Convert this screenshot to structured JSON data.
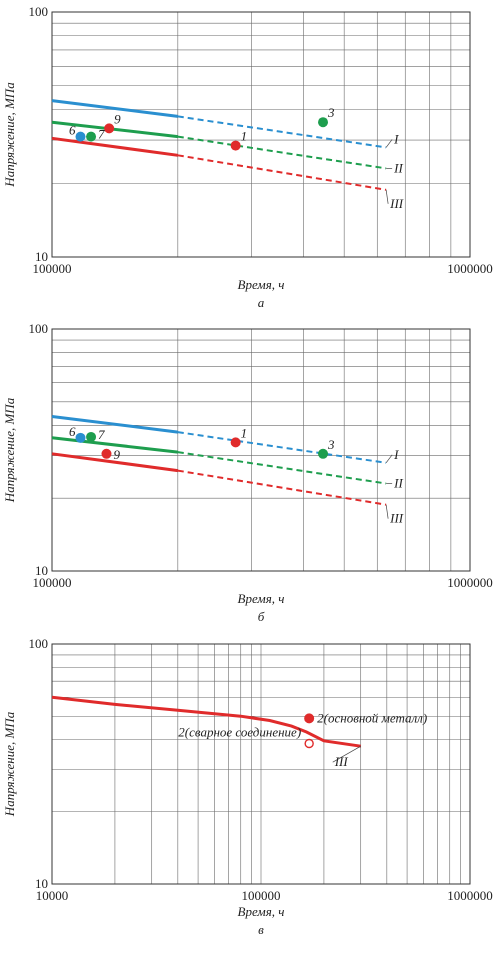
{
  "chart_data": [
    {
      "panel_label": "а",
      "type": "line",
      "x_scale": "log",
      "y_scale": "log",
      "xlim": [
        100000,
        1000000
      ],
      "ylim": [
        10,
        100
      ],
      "xlabel": "Время, ч",
      "ylabel": "Напряжение, МПа",
      "x_tick_labels": [
        "100000",
        "1000000"
      ],
      "y_tick_labels": [
        "10",
        "100"
      ],
      "grid": true,
      "series": [
        {
          "name": "I",
          "color": "#2a8fd0",
          "solid": [
            [
              100000,
              43.5
            ],
            [
              200000,
              37.5
            ]
          ],
          "dashed": [
            [
              200000,
              37.5
            ],
            [
              630000,
              28.0
            ]
          ]
        },
        {
          "name": "II",
          "color": "#1e9e4e",
          "solid": [
            [
              100000,
              35.5
            ],
            [
              200000,
              31.0
            ]
          ],
          "dashed": [
            [
              200000,
              31.0
            ],
            [
              630000,
              23.0
            ]
          ]
        },
        {
          "name": "III",
          "color": "#e02b2b",
          "solid": [
            [
              100000,
              30.5
            ],
            [
              200000,
              26.0
            ]
          ],
          "dashed": [
            [
              200000,
              26.0
            ],
            [
              630000,
              18.8
            ]
          ]
        }
      ],
      "points": [
        {
          "label": "9",
          "x": 137000,
          "y": 33.5,
          "color": "#e02b2b"
        },
        {
          "label": "6",
          "x": 117000,
          "y": 31.0,
          "color": "#2a8fd0"
        },
        {
          "label": "7",
          "x": 124000,
          "y": 31.0,
          "color": "#1e9e4e"
        },
        {
          "label": "1",
          "x": 275000,
          "y": 28.5,
          "color": "#e02b2b"
        },
        {
          "label": "3",
          "x": 445000,
          "y": 35.5,
          "color": "#1e9e4e"
        }
      ]
    },
    {
      "panel_label": "б",
      "type": "line",
      "x_scale": "log",
      "y_scale": "log",
      "xlim": [
        100000,
        1000000
      ],
      "ylim": [
        10,
        100
      ],
      "xlabel": "Время, ч",
      "ylabel": "Напряжение, МПа",
      "x_tick_labels": [
        "100000",
        "1000000"
      ],
      "y_tick_labels": [
        "10",
        "100"
      ],
      "grid": true,
      "series": [
        {
          "name": "I",
          "color": "#2a8fd0",
          "solid": [
            [
              100000,
              43.5
            ],
            [
              200000,
              37.5
            ]
          ],
          "dashed": [
            [
              200000,
              37.5
            ],
            [
              630000,
              28.0
            ]
          ]
        },
        {
          "name": "II",
          "color": "#1e9e4e",
          "solid": [
            [
              100000,
              35.5
            ],
            [
              200000,
              31.0
            ]
          ],
          "dashed": [
            [
              200000,
              31.0
            ],
            [
              630000,
              23.0
            ]
          ]
        },
        {
          "name": "III",
          "color": "#e02b2b",
          "solid": [
            [
              100000,
              30.5
            ],
            [
              200000,
              26.0
            ]
          ],
          "dashed": [
            [
              200000,
              26.0
            ],
            [
              630000,
              18.8
            ]
          ]
        }
      ],
      "points": [
        {
          "label": "6",
          "x": 117000,
          "y": 35.5,
          "color": "#2a8fd0"
        },
        {
          "label": "7",
          "x": 124000,
          "y": 35.8,
          "color": "#1e9e4e"
        },
        {
          "label": "9",
          "x": 135000,
          "y": 30.5,
          "color": "#e02b2b"
        },
        {
          "label": "1",
          "x": 275000,
          "y": 34.0,
          "color": "#e02b2b"
        },
        {
          "label": "3",
          "x": 445000,
          "y": 30.5,
          "color": "#1e9e4e"
        }
      ]
    },
    {
      "panel_label": "в",
      "type": "line",
      "x_scale": "log",
      "y_scale": "log",
      "xlim": [
        10000,
        1000000
      ],
      "ylim": [
        10,
        100
      ],
      "xlabel": "Время, ч",
      "ylabel": "Напряжение, МПа",
      "x_tick_labels": [
        "10000",
        "100000",
        "1000000"
      ],
      "y_tick_labels": [
        "10",
        "100"
      ],
      "grid": true,
      "series": [
        {
          "name": "III",
          "color": "#e02b2b",
          "solid": [
            [
              10000,
              60
            ],
            [
              20000,
              56
            ],
            [
              40000,
              53
            ],
            [
              80000,
              50
            ],
            [
              110000,
              48
            ],
            [
              140000,
              45.5
            ],
            [
              165000,
              43
            ],
            [
              200000,
              39.5
            ],
            [
              300000,
              37.5
            ]
          ],
          "dashed": []
        }
      ],
      "points": [
        {
          "label": "2(основной металл)",
          "x": 170000,
          "y": 49,
          "color": "#e02b2b",
          "filled": true
        },
        {
          "label": "2(сварное соединение)",
          "x": 170000,
          "y": 38.5,
          "color": "#e02b2b",
          "filled": false
        }
      ]
    }
  ]
}
